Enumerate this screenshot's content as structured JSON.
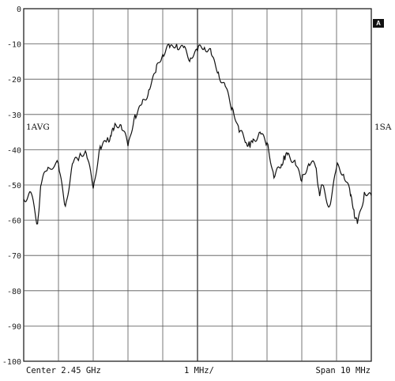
{
  "chart_data": {
    "type": "line",
    "y_ticks": [
      "0",
      "-10",
      "-20",
      "-30",
      "-40",
      "-50",
      "-60",
      "-70",
      "-80",
      "-90",
      "-100"
    ],
    "ylim": [
      -100,
      0
    ],
    "x_divisions": 10,
    "y_divisions": 10,
    "grid": true,
    "footer": {
      "left": "Center 2.45 GHz",
      "middle": "1 MHz/",
      "right": "Span 10 MHz"
    },
    "left_annotation": "1AVG",
    "right_annotation": "1SA",
    "marker_badge": "A",
    "x_unit": "MHz offset from center",
    "series": [
      {
        "x": [
          -5.0,
          -4.8,
          -4.6,
          -4.5,
          -4.3,
          -4.0,
          -3.8,
          -3.6,
          -3.4,
          -3.2,
          -3.0,
          -2.8,
          -2.6,
          -2.5,
          -2.4,
          -2.2,
          -2.0,
          -1.8,
          -1.6,
          -1.4,
          -1.2,
          -1.0,
          -0.8,
          -0.6,
          -0.4,
          -0.2,
          0.0,
          0.2,
          0.4,
          0.6,
          0.8,
          1.0,
          1.2,
          1.4,
          1.5,
          1.6,
          1.8,
          2.0,
          2.2,
          2.4,
          2.5,
          2.6,
          2.8,
          3.0,
          3.2,
          3.4,
          3.5,
          3.6,
          3.8,
          4.0,
          4.2,
          4.4,
          4.5,
          4.6,
          4.8,
          5.0
        ],
        "y": [
          -54,
          -52,
          -61,
          -50,
          -45,
          -44,
          -56,
          -44,
          -42,
          -41,
          -51,
          -39,
          -37,
          -36,
          -34,
          -33,
          -39,
          -30,
          -27,
          -23,
          -18,
          -13,
          -11,
          -10,
          -11,
          -14,
          -12,
          -11,
          -13,
          -18,
          -22,
          -28,
          -35,
          -38,
          -39,
          -37,
          -35,
          -38,
          -48,
          -45,
          -42,
          -41,
          -43,
          -49,
          -44,
          -45,
          -52,
          -50,
          -56,
          -45,
          -47,
          -53,
          -57,
          -61,
          -52,
          -53
        ]
      }
    ]
  }
}
